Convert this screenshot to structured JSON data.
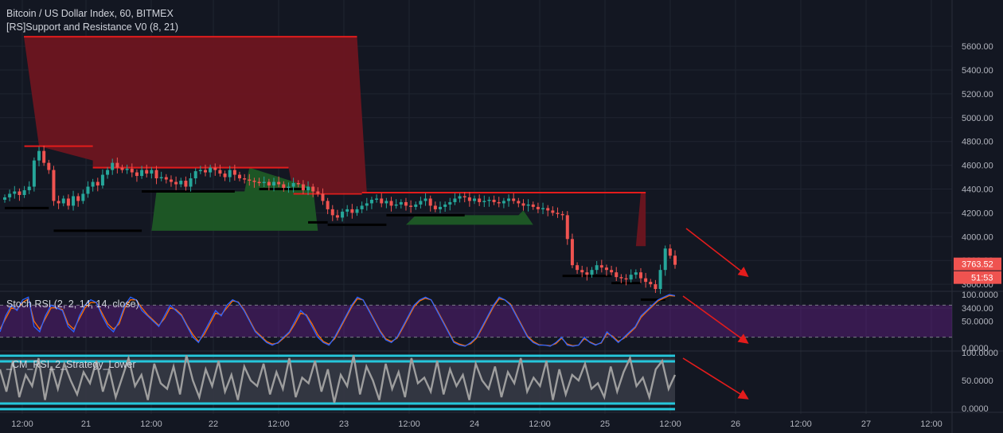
{
  "header": {
    "symbol_title": "Bitcoin / US Dollar Index, 60, BITMEX",
    "indicator_title": "[RS]Support and Resistance V0 (8, 21)"
  },
  "price_scale": {
    "ticks": [
      "5600.00",
      "5400.00",
      "5200.00",
      "5000.00",
      "4800.00",
      "4600.00",
      "4400.00",
      "4200.00",
      "4000.00",
      "3800.00",
      "3600.00",
      "3400.00"
    ],
    "last_price": "3763.52",
    "countdown": "51:53",
    "last_price_color": "#ef5350"
  },
  "stoch_rsi": {
    "title": "Stoch RSI (2, 2, 14, 14, close)",
    "ticks": [
      "100.0000",
      "50.0000",
      "0.0000"
    ],
    "k_color": "#2962ff",
    "d_color": "#ff6d00",
    "band_color": "#7b1fa2"
  },
  "cm_rsi": {
    "title": "_CM_RSI_2_Strategy_Lower",
    "ticks": [
      "100.0000",
      "50.0000",
      "0.0000"
    ],
    "line_color": "#9e9e9e",
    "band_color": "#26c6da"
  },
  "time_axis": {
    "ticks": [
      "12:00",
      "21",
      "12:00",
      "22",
      "12:00",
      "23",
      "12:00",
      "24",
      "12:00",
      "25",
      "12:00",
      "26",
      "12:00",
      "27",
      "12:00"
    ]
  },
  "colors": {
    "up_candle": "#26a69a",
    "down_candle": "#ef5350",
    "resistance_fill": "#6d1520",
    "support_fill": "#1d5a26",
    "resistance_line": "#e31c1c",
    "support_line": "#000000",
    "annotation_arrow": "#e31c1c"
  },
  "chart_data": {
    "type": "candlestick",
    "price_range": [
      3360,
      5680
    ],
    "close_series": [
      4330,
      4360,
      4380,
      4350,
      4390,
      4420,
      4640,
      4720,
      4620,
      4560,
      4300,
      4280,
      4320,
      4260,
      4340,
      4300,
      4360,
      4420,
      4460,
      4430,
      4520,
      4560,
      4620,
      4580,
      4560,
      4570,
      4540,
      4510,
      4560,
      4530,
      4560,
      4490,
      4500,
      4480,
      4460,
      4440,
      4470,
      4420,
      4490,
      4550,
      4560,
      4540,
      4580,
      4560,
      4530,
      4500,
      4560,
      4520,
      4490,
      4480,
      4470,
      4460,
      4450,
      4460,
      4430,
      4460,
      4440,
      4410,
      4420,
      4450,
      4440,
      4390,
      4420,
      4380,
      4360,
      4300,
      4230,
      4180,
      4160,
      4210,
      4230,
      4200,
      4230,
      4260,
      4280,
      4310,
      4320,
      4280,
      4300,
      4260,
      4270,
      4290,
      4260,
      4250,
      4270,
      4300,
      4320,
      4260,
      4230,
      4250,
      4270,
      4290,
      4320,
      4340,
      4330,
      4300,
      4320,
      4290,
      4300,
      4310,
      4290,
      4280,
      4300,
      4320,
      4300,
      4280,
      4260,
      4270,
      4250,
      4230,
      4240,
      4220,
      4200,
      4190,
      4180,
      3980,
      3760,
      3720,
      3700,
      3680,
      3720,
      3760,
      3740,
      3720,
      3700,
      3660,
      3650,
      3640,
      3680,
      3700,
      3650,
      3620,
      3600,
      3560,
      3720,
      3900,
      3840,
      3763.52
    ],
    "support_levels": [
      {
        "from": 0,
        "to": 9,
        "price": 4240
      },
      {
        "from": 10,
        "to": 28,
        "price": 4050
      },
      {
        "from": 28,
        "to": 47,
        "price": 4380
      },
      {
        "from": 52,
        "to": 62,
        "price": 4400
      },
      {
        "from": 62,
        "to": 66,
        "price": 4120
      },
      {
        "from": 66,
        "to": 78,
        "price": 4100
      },
      {
        "from": 78,
        "to": 94,
        "price": 4180
      },
      {
        "from": 114,
        "to": 124,
        "price": 3670
      },
      {
        "from": 124,
        "to": 130,
        "price": 3610
      },
      {
        "from": 130,
        "to": 135,
        "price": 3470
      }
    ],
    "resistance_levels": [
      {
        "from": 0,
        "to": 72,
        "price": 5680
      },
      {
        "from": 4,
        "to": 18,
        "price": 4760
      },
      {
        "from": 18,
        "to": 58,
        "price": 4580
      },
      {
        "from": 59,
        "to": 73,
        "price": 4360
      },
      {
        "from": 73,
        "to": 131,
        "price": 4370
      }
    ],
    "stoch_k": [
      30,
      60,
      80,
      70,
      90,
      95,
      40,
      30,
      60,
      80,
      75,
      70,
      40,
      30,
      60,
      80,
      90,
      85,
      60,
      40,
      30,
      50,
      80,
      95,
      90,
      70,
      60,
      50,
      40,
      60,
      80,
      70,
      60,
      40,
      20,
      10,
      30,
      50,
      70,
      60,
      80,
      90,
      85,
      70,
      50,
      30,
      20,
      10,
      5,
      10,
      20,
      30,
      50,
      70,
      60,
      40,
      20,
      10,
      5,
      20,
      40,
      60,
      80,
      95,
      90,
      70,
      50,
      30,
      15,
      10,
      20,
      40,
      60,
      80,
      90,
      95,
      90,
      70,
      50,
      30,
      10,
      5,
      3,
      10,
      20,
      40,
      60,
      80,
      95,
      90,
      80,
      60,
      40,
      20,
      10,
      5,
      5,
      3,
      10,
      20,
      5,
      3,
      5,
      20,
      10,
      5,
      10,
      30,
      20,
      10,
      20,
      30,
      40,
      60,
      70,
      80,
      90,
      95,
      100,
      98
    ],
    "stoch_d": [
      35,
      55,
      75,
      72,
      85,
      92,
      50,
      35,
      55,
      75,
      75,
      72,
      45,
      35,
      55,
      75,
      85,
      85,
      65,
      45,
      35,
      45,
      75,
      90,
      90,
      75,
      62,
      52,
      42,
      55,
      75,
      72,
      62,
      42,
      25,
      12,
      25,
      45,
      65,
      62,
      75,
      88,
      86,
      72,
      52,
      32,
      22,
      12,
      7,
      9,
      18,
      28,
      45,
      65,
      62,
      45,
      25,
      12,
      7,
      17,
      37,
      57,
      77,
      92,
      90,
      72,
      52,
      32,
      17,
      12,
      18,
      37,
      57,
      77,
      88,
      93,
      90,
      72,
      52,
      32,
      12,
      7,
      4,
      8,
      18,
      37,
      57,
      77,
      92,
      90,
      82,
      62,
      42,
      22,
      12,
      6,
      5,
      4,
      8,
      18,
      7,
      4,
      5,
      17,
      11,
      6,
      9,
      27,
      22,
      12,
      18,
      28,
      38,
      57,
      68,
      78,
      88,
      93,
      98,
      97
    ],
    "cm_rsi": [
      70,
      30,
      85,
      20,
      60,
      40,
      90,
      15,
      75,
      35,
      80,
      50,
      25,
      65,
      45,
      85,
      30,
      70,
      20,
      55,
      90,
      40,
      60,
      15,
      80,
      45,
      35,
      75,
      25,
      95,
      50,
      20,
      70,
      40,
      85,
      30,
      60,
      15,
      75,
      50,
      40,
      80,
      25,
      65,
      35,
      90,
      20,
      55,
      45,
      85,
      30,
      70,
      10,
      60,
      40,
      95,
      25,
      75,
      50,
      15,
      80,
      35,
      65,
      20,
      90,
      45,
      55,
      30,
      85,
      25,
      70,
      40,
      60,
      15,
      80,
      50,
      35,
      75,
      20,
      65,
      45,
      90,
      30,
      55,
      40,
      85,
      15,
      70,
      25,
      60,
      50,
      80,
      35,
      45,
      20,
      75,
      30,
      65,
      90,
      40,
      55,
      20,
      70,
      85,
      35,
      60
    ],
    "rsi_ranges": {
      "stoch_band": [
        20,
        80
      ],
      "cm_band": [
        10,
        90
      ]
    }
  }
}
